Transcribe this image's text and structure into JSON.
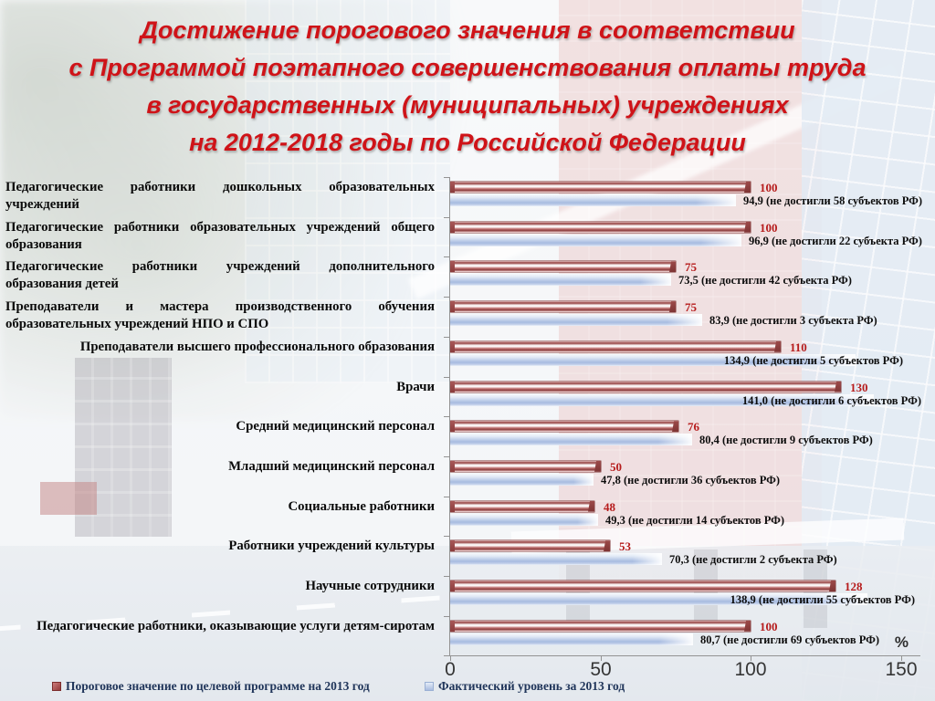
{
  "slide_title": {
    "lines": [
      "Достижение порогового значения в соответствии",
      "с Программой поэтапного совершенствования оплаты труда",
      "в государственных (муниципальных) учреждениях",
      "на 2012-2018 годы по Российской Федерации"
    ],
    "color": "#cf1318"
  },
  "chart_data": {
    "type": "bar",
    "orientation": "horizontal",
    "xlim": [
      0,
      150
    ],
    "x_ticks": [
      0,
      50,
      100,
      150
    ],
    "x_unit": "%",
    "grid": false,
    "legend_position": "bottom",
    "categories": [
      "Педагогические работники дошкольных образовательных учреждений",
      "Педагогические работники образовательных учреждений общего образования",
      "Педагогические работники учреждений дополнительного образования детей",
      "Преподаватели и мастера производственного обучения образовательных учреждений НПО и СПО",
      "Преподаватели высшего профессионального образования",
      "Врачи",
      "Средний медицинский персонал",
      "Младший медицинский персонал",
      "Социальные работники",
      "Работники учреждений культуры",
      "Научные сотрудники",
      "Педагогические работники, оказывающие услуги детям-сиротам"
    ],
    "series": [
      {
        "name": "Пороговое значение по целевой программе на 2013 год",
        "color": "#a85757",
        "values": [
          100,
          100,
          75,
          75,
          110,
          130,
          76,
          50,
          48,
          53,
          128,
          100
        ]
      },
      {
        "name": "Фактический уровень за 2013 год",
        "color": "#a7bbe0",
        "values": [
          94.9,
          96.9,
          73.5,
          83.9,
          134.9,
          141.0,
          80.4,
          47.8,
          49.3,
          70.3,
          138.9,
          80.7
        ]
      }
    ],
    "threshold_value_labels": [
      "100",
      "100",
      "75",
      "75",
      "110",
      "130",
      "76",
      "50",
      "48",
      "53",
      "128",
      "100"
    ],
    "actual_value_labels": [
      "94,9 (не достигли 58 субъектов РФ)",
      "96,9 (не достигли 22 субъекта РФ)",
      "73,5 (не достигли 42 субъекта РФ)",
      "83,9 (не достигли 3 субъекта РФ)",
      "134,9 (не достигли 5 субъектов РФ)",
      "141,0 (не достигли 6 субъектов РФ)",
      "80,4 (не достигли 9 субъектов РФ)",
      "47,8 (не достигли 36 субъектов РФ)",
      "49,3 (не достигли 14 субъектов РФ)",
      "70,3 (не достигли 2 субъекта РФ)",
      "138,9 (не достигли 55 субъектов РФ)",
      "80,7 (не достигли 69 субъектов РФ)"
    ]
  },
  "colors": {
    "threshold_value_label": "#b61c1c",
    "actual_value_label": "#0d0d0d",
    "legend_text": "#20355a",
    "axis": "#939393"
  }
}
